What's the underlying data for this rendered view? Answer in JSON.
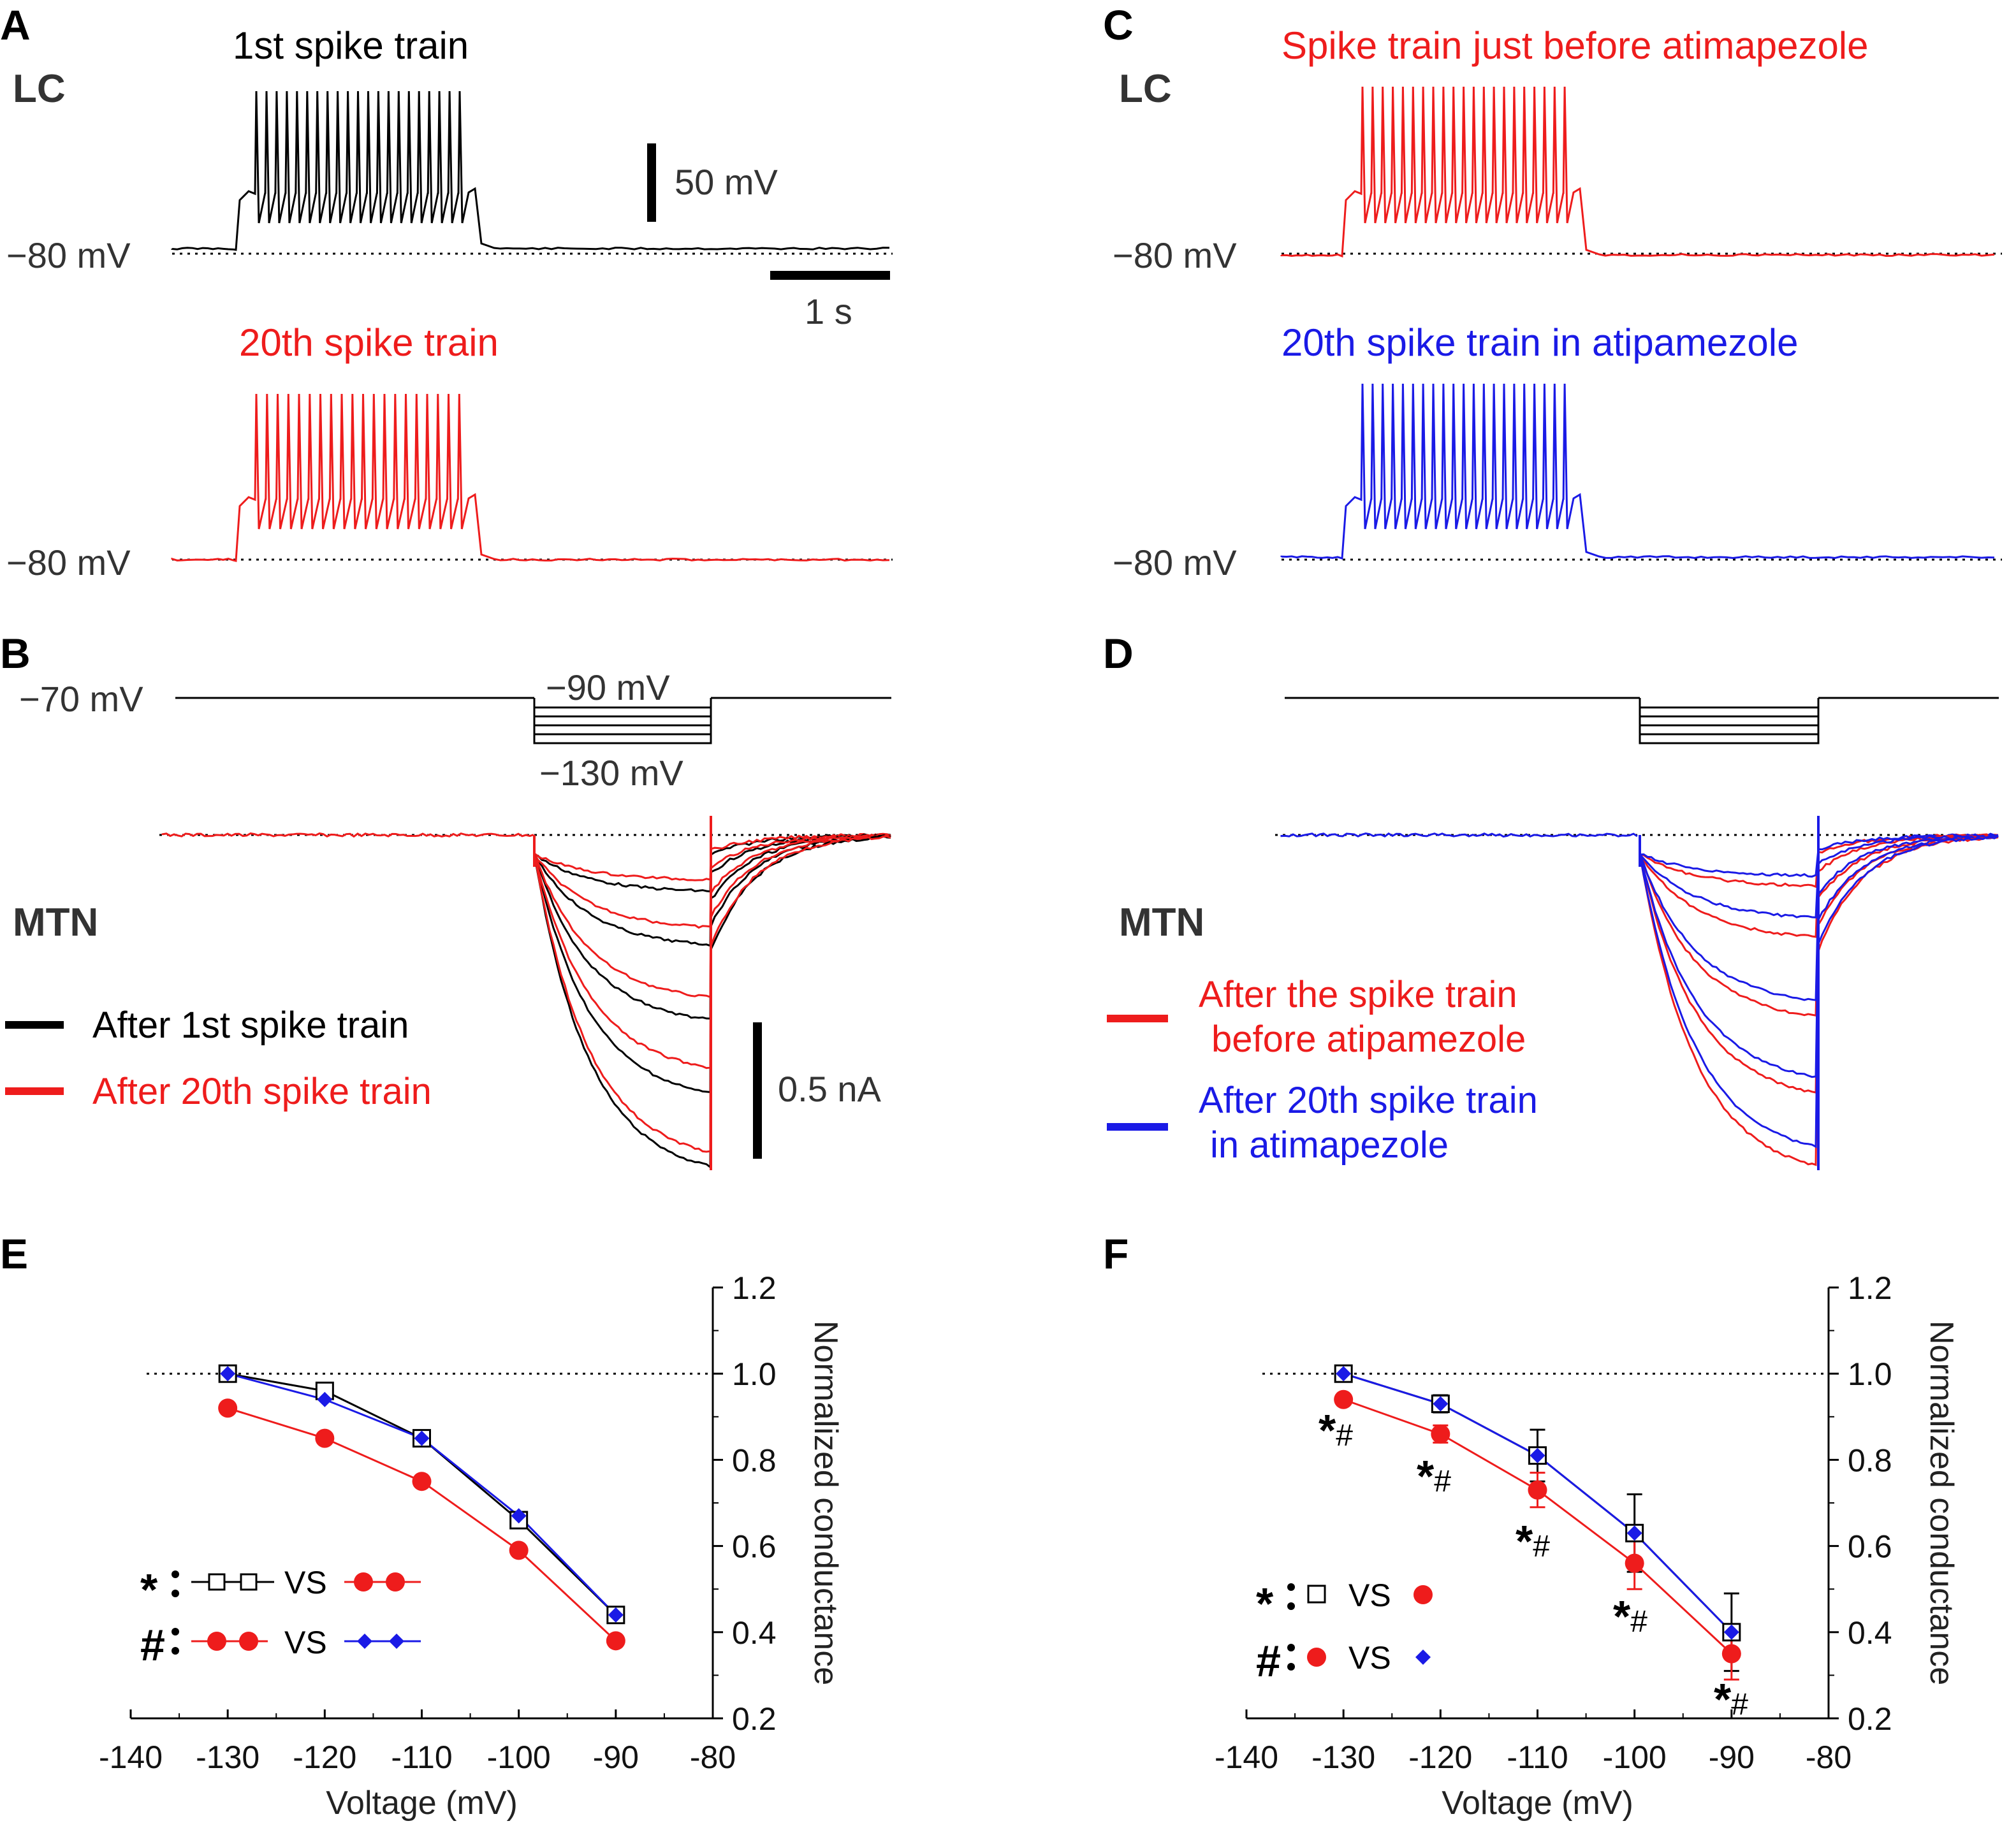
{
  "colors": {
    "black": "#000000",
    "red": "#ee1c1c",
    "blue": "#1a1ae6",
    "gray": "#333333"
  },
  "panels": {
    "A": {
      "label": "A",
      "region": "LC",
      "train1_title": "1st spike train",
      "train20_title": "20th spike train",
      "rest_label_1": "−80 mV",
      "rest_label_2": "−80 mV",
      "scale_voltage": "50 mV",
      "scale_time": "1 s"
    },
    "B": {
      "label": "B",
      "region": "MTN",
      "hold_label": "−70 mV",
      "step_top_label": "−90 mV",
      "step_bottom_label": "−130 mV",
      "legend": [
        {
          "text": "After 1st spike train",
          "color": "#000000"
        },
        {
          "text": "After 20th spike train",
          "color": "#ee1c1c"
        }
      ],
      "scale_current": "0.5 nA"
    },
    "C": {
      "label": "C",
      "region": "LC",
      "train_before_title": "Spike train just before atimapezole",
      "train20_title": "20th spike train in atipamezole",
      "rest_label_1": "−80 mV",
      "rest_label_2": "−80 mV"
    },
    "D": {
      "label": "D",
      "region": "MTN",
      "legend": [
        {
          "line1": "After the spike train",
          "line2": "before atipamezole",
          "color": "#ee1c1c"
        },
        {
          "line1": "After 20th spike train",
          "line2": "in atimapezole",
          "color": "#1a1ae6"
        }
      ]
    },
    "E": {
      "label": "E",
      "key1_symbol": "*",
      "key2_symbol": "#",
      "vs_text": "VS"
    },
    "F": {
      "label": "F",
      "key1_symbol": "*",
      "key2_symbol": "#",
      "vs_text": "VS",
      "marks": [
        "*#",
        "*#",
        "*#",
        "*#",
        "*#"
      ]
    }
  },
  "chart_data": [
    {
      "panel": "E",
      "type": "line",
      "title": "",
      "xlabel": "Voltage (mV)",
      "ylabel": "Normalized conductance",
      "xlim": [
        -140,
        -80
      ],
      "ylim": [
        0.2,
        1.2
      ],
      "x_ticks": [
        "-140",
        "-130",
        "-120",
        "-110",
        "-100",
        "-90",
        "-80"
      ],
      "y_ticks": [
        "0.2",
        "0.4",
        "0.6",
        "0.8",
        "1.0",
        "1.2"
      ],
      "y_axis_side": "right",
      "reference_line": 1.0,
      "x": [
        -130,
        -120,
        -110,
        -100,
        -90
      ],
      "series": [
        {
          "name": "After 1st spike train",
          "color": "#000000",
          "marker": "open-square",
          "values": [
            1.0,
            0.96,
            0.85,
            0.66,
            0.44
          ]
        },
        {
          "name": "After 20th spike train",
          "color": "#ee1c1c",
          "marker": "circle",
          "values": [
            0.92,
            0.85,
            0.75,
            0.59,
            0.38
          ]
        },
        {
          "name": "In atipamezole",
          "color": "#1a1ae6",
          "marker": "diamond",
          "values": [
            1.0,
            0.94,
            0.85,
            0.67,
            0.44
          ]
        }
      ]
    },
    {
      "panel": "F",
      "type": "line",
      "title": "",
      "xlabel": "Voltage (mV)",
      "ylabel": "Normalized conductance",
      "xlim": [
        -140,
        -80
      ],
      "ylim": [
        0.2,
        1.2
      ],
      "x_ticks": [
        "-140",
        "-130",
        "-120",
        "-110",
        "-100",
        "-90",
        "-80"
      ],
      "y_ticks": [
        "0.2",
        "0.4",
        "0.6",
        "0.8",
        "1.0",
        "1.2"
      ],
      "y_axis_side": "right",
      "reference_line": 1.0,
      "x": [
        -130,
        -120,
        -110,
        -100,
        -90
      ],
      "series": [
        {
          "name": "After 1st spike train",
          "color": "#000000",
          "marker": "open-square",
          "values": [
            1.0,
            0.93,
            0.81,
            0.63,
            0.4
          ],
          "err": [
            0.01,
            0.02,
            0.06,
            0.09,
            0.09
          ]
        },
        {
          "name": "Before atipamezole",
          "color": "#ee1c1c",
          "marker": "circle",
          "values": [
            0.94,
            0.86,
            0.73,
            0.56,
            0.35
          ],
          "err": [
            0.01,
            0.02,
            0.04,
            0.06,
            0.06
          ]
        },
        {
          "name": "In atipamezole",
          "color": "#1a1ae6",
          "marker": "diamond",
          "values": [
            1.0,
            0.93,
            0.81,
            0.63,
            0.4
          ]
        }
      ]
    }
  ]
}
